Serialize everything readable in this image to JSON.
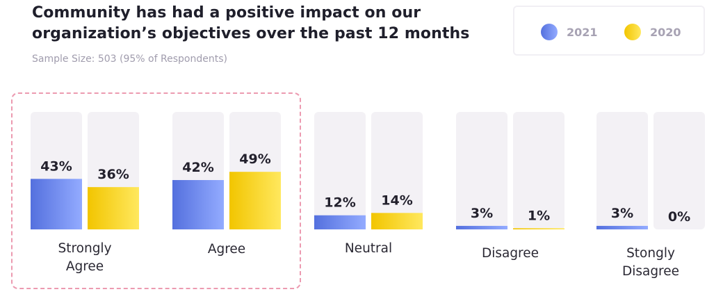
{
  "title_lines": [
    "Community has had a positive impact on our",
    "organization’s objectives over the past 12 months"
  ],
  "subtitle": "Sample Size: 503 (95% of Respondents)",
  "legend": [
    {
      "label": "2021",
      "color": "#6f8ff0"
    },
    {
      "label": "2020",
      "color": "#f5d21c"
    }
  ],
  "colors": {
    "series_2021_start": "#5470de",
    "series_2021_end": "#93abff",
    "series_2020_start": "#f2c500",
    "series_2020_end": "#ffe85e",
    "track": "#f3f1f5",
    "highlight_border": "#ec9ab0"
  },
  "chart_data": {
    "type": "bar",
    "categories": [
      "Strongly\nAgree",
      "Agree",
      "Neutral",
      "Disagree",
      "Stongly\nDisagree"
    ],
    "series": [
      {
        "name": "2021",
        "values": [
          43,
          42,
          12,
          3,
          3
        ],
        "labels": [
          "43%",
          "42%",
          "12%",
          "3%",
          "3%"
        ]
      },
      {
        "name": "2020",
        "values": [
          36,
          49,
          14,
          1,
          0
        ],
        "labels": [
          "36%",
          "49%",
          "14%",
          "1%",
          "0%"
        ]
      }
    ],
    "ylim": [
      0,
      100
    ],
    "title": "Community has had a positive impact on our organization’s objectives over the past 12 months",
    "subtitle": "Sample Size: 503 (95% of Respondents)",
    "highlighted_categories": [
      "Strongly\nAgree",
      "Agree"
    ]
  }
}
